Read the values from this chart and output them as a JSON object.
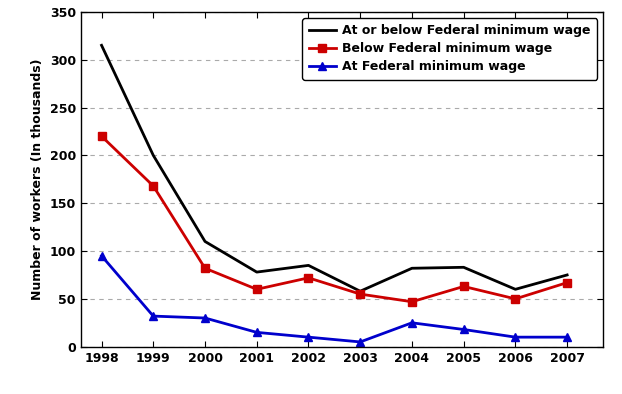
{
  "years": [
    1998,
    1999,
    2000,
    2001,
    2002,
    2003,
    2004,
    2005,
    2006,
    2007
  ],
  "at_or_below": [
    315,
    200,
    110,
    78,
    85,
    58,
    82,
    83,
    60,
    75
  ],
  "below": [
    220,
    168,
    82,
    60,
    72,
    55,
    47,
    63,
    50,
    67
  ],
  "at": [
    95,
    32,
    30,
    15,
    10,
    5,
    25,
    18,
    10,
    10
  ],
  "at_or_below_color": "#000000",
  "below_color": "#cc0000",
  "at_color": "#0000cc",
  "ylabel": "Number of workers (In thousands)",
  "ylim": [
    0,
    350
  ],
  "yticks": [
    0,
    50,
    100,
    150,
    200,
    250,
    300,
    350
  ],
  "legend_labels": [
    "At or below Federal minimum wage",
    "Below Federal minimum wage",
    "At Federal minimum wage"
  ],
  "background_color": "#ffffff",
  "grid_color": "#aaaaaa"
}
